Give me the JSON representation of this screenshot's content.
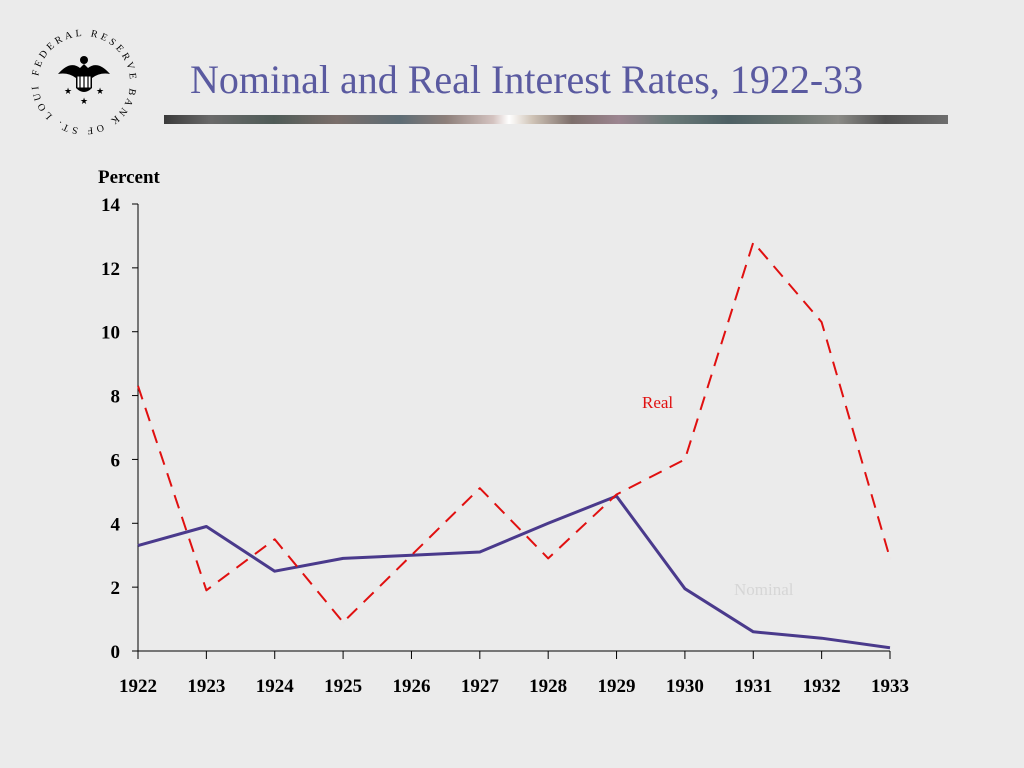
{
  "header": {
    "title": "Nominal and Real Interest Rates, 1922-33",
    "logo_text": "FEDERAL RESERVE BANK OF ST. LOUIS",
    "title_color": "#5a5aa0"
  },
  "chart_data": {
    "type": "line",
    "title": "Nominal and Real Interest Rates, 1922-33",
    "ylabel": "Percent",
    "xlabel": "",
    "categories": [
      "1922",
      "1923",
      "1924",
      "1925",
      "1926",
      "1927",
      "1928",
      "1929",
      "1930",
      "1931",
      "1932",
      "1933"
    ],
    "yticks": [
      0,
      2,
      4,
      6,
      8,
      10,
      12,
      14
    ],
    "ylim": [
      0,
      14
    ],
    "grid": false,
    "series": [
      {
        "name": "Nominal",
        "color": "#4a3a8c",
        "style": "solid",
        "values": [
          3.3,
          3.9,
          2.5,
          2.9,
          3.0,
          3.1,
          4.0,
          4.85,
          1.95,
          0.6,
          0.4,
          0.1
        ]
      },
      {
        "name": "Real",
        "color": "#e01010",
        "style": "dashed",
        "values": [
          8.3,
          1.9,
          3.5,
          0.9,
          3.0,
          5.1,
          2.9,
          4.9,
          6.0,
          12.8,
          10.3,
          2.9
        ]
      }
    ],
    "annotations": [
      {
        "text": "Real",
        "series": "Real",
        "color": "#e01010"
      },
      {
        "text": "Nominal",
        "series": "Nominal",
        "color": "#d6d6d6"
      }
    ]
  }
}
